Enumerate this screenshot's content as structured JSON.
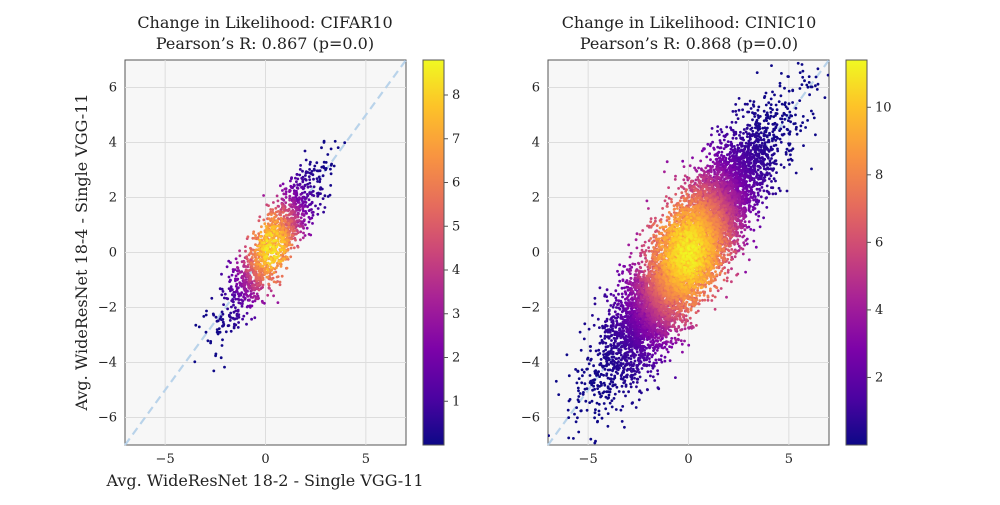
{
  "chart_data": [
    {
      "type": "scatter",
      "title": "Change in Likelihood: CIFAR10",
      "subtitle": "Pearson’s R: 0.867 (p=0.0)",
      "xlabel": "Avg. WideResNet 18-2 - Single VGG-11",
      "ylabel": "Avg. WideResNet 18-4 - Single VGG-11",
      "xlim": [
        -7,
        7
      ],
      "ylim": [
        -7,
        7
      ],
      "xticks": [
        -5,
        0,
        5
      ],
      "yticks": [
        -6,
        -4,
        -2,
        0,
        2,
        4,
        6
      ],
      "grid": true,
      "reference_line": {
        "style": "dashed",
        "from": [
          -7,
          -7
        ],
        "to": [
          7,
          7
        ],
        "color": "#b9d3ea"
      },
      "colormap": "plasma",
      "colorbar": {
        "min": 0,
        "max": 8.8,
        "ticks": [
          1,
          2,
          3,
          4,
          5,
          6,
          7,
          8
        ]
      },
      "points": {
        "count": 1400,
        "correlation": 0.867,
        "cluster_center": [
          0.3,
          0.2
        ],
        "spread": [
          1.2,
          1.4
        ],
        "density_peak": 8.8
      }
    },
    {
      "type": "scatter",
      "title": "Change in Likelihood: CINIC10",
      "subtitle": "Pearson’s R: 0.868 (p=0.0)",
      "xlabel": "",
      "ylabel": "",
      "xlim": [
        -7,
        7
      ],
      "ylim": [
        -7,
        7
      ],
      "xticks": [
        -5,
        0,
        5
      ],
      "yticks": [
        -6,
        -4,
        -2,
        0,
        2,
        4,
        6
      ],
      "grid": true,
      "reference_line": {
        "style": "dashed",
        "from": [
          -7,
          -7
        ],
        "to": [
          7,
          7
        ],
        "color": "#b9d3ea"
      },
      "colormap": "plasma",
      "colorbar": {
        "min": 0,
        "max": 11.4,
        "ticks": [
          2,
          4,
          6,
          8,
          10
        ]
      },
      "points": {
        "count": 9000,
        "correlation": 0.868,
        "cluster_center": [
          0.0,
          0.0
        ],
        "spread": [
          2.0,
          2.2
        ],
        "density_peak": 11.4
      }
    }
  ]
}
